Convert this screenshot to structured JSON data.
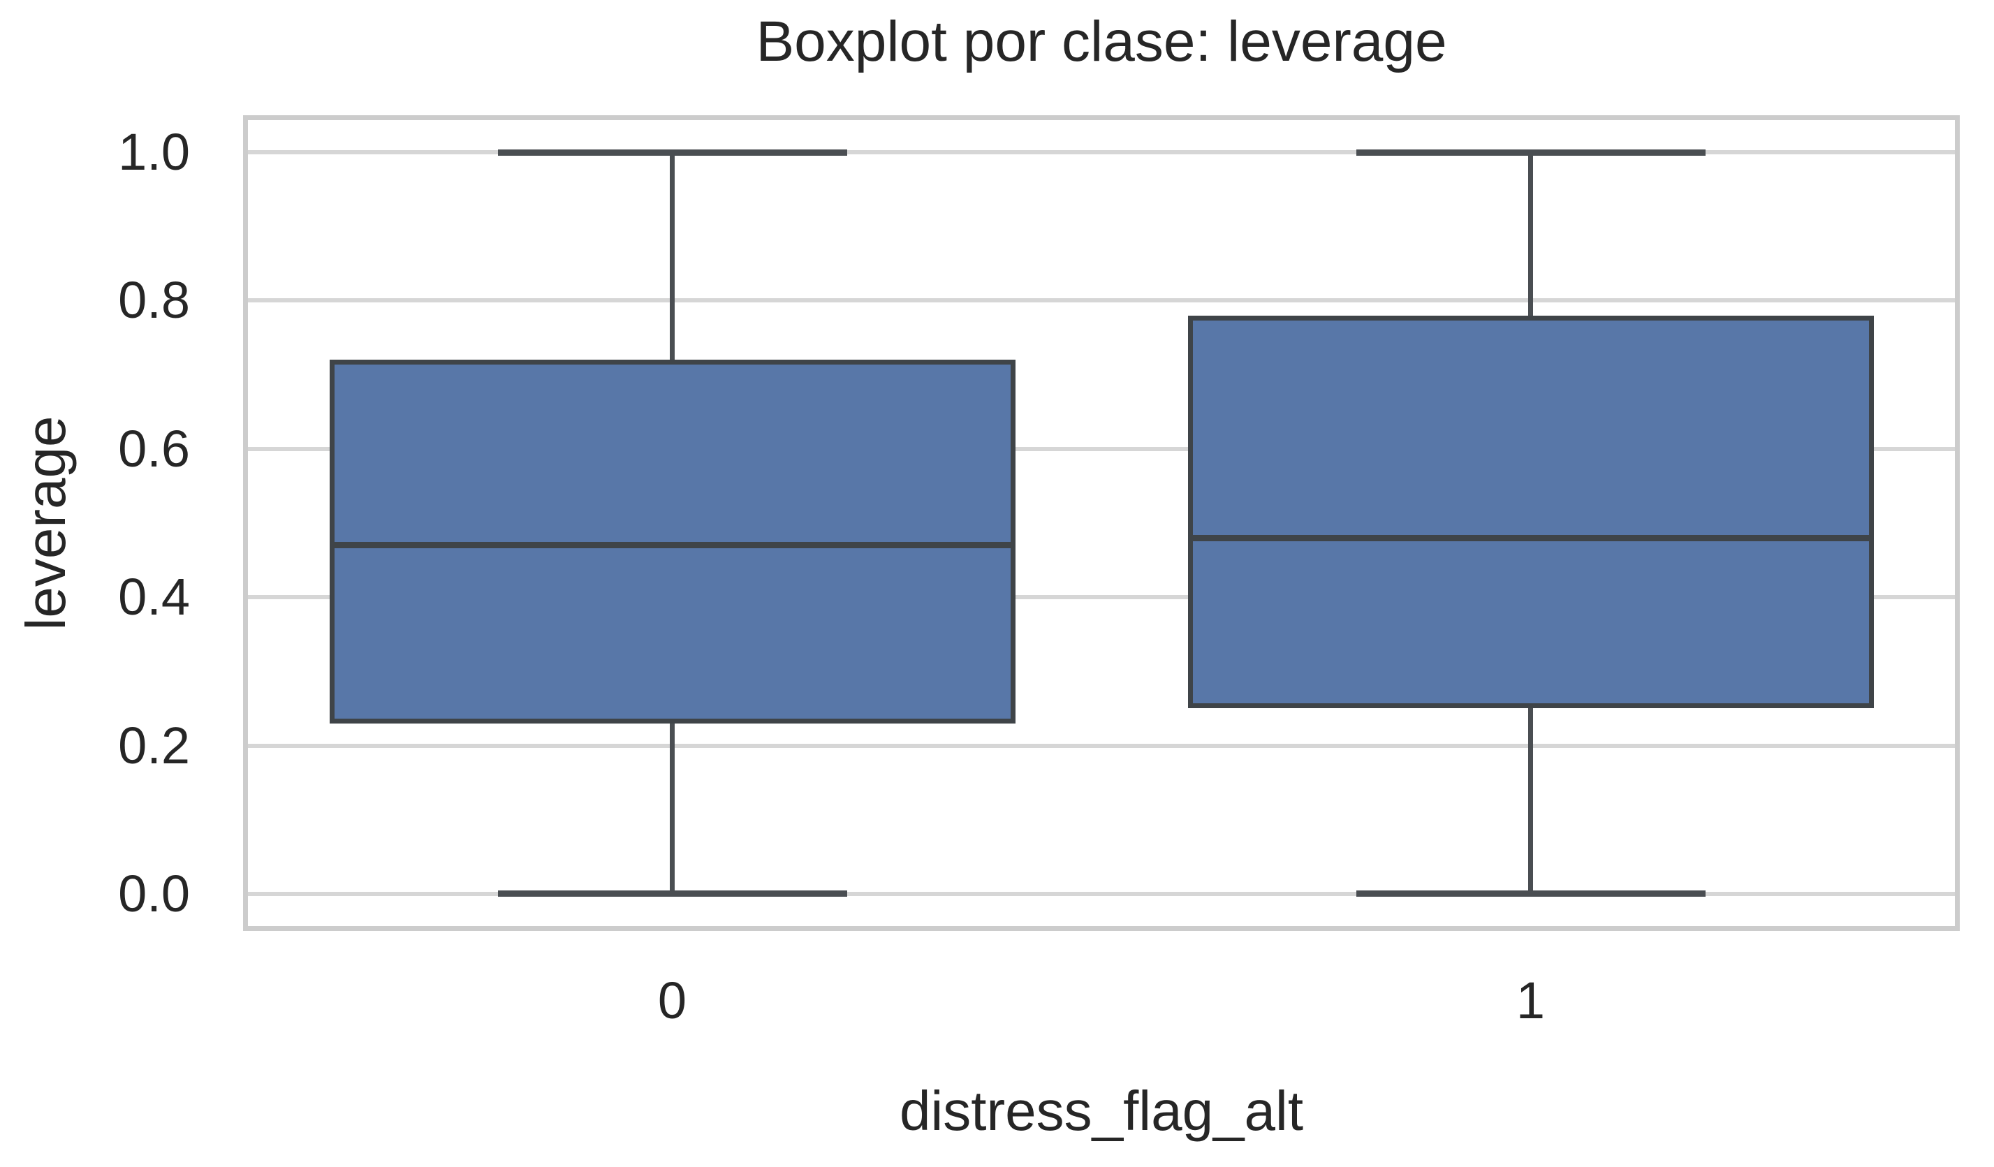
{
  "chart_data": {
    "type": "box",
    "title": "Boxplot por clase: leverage",
    "xlabel": "distress_flag_alt",
    "ylabel": "leverage",
    "categories": [
      "0",
      "1"
    ],
    "series": [
      {
        "category": "0",
        "whisker_low": 0.0,
        "q1": 0.23,
        "median": 0.47,
        "q3": 0.72,
        "whisker_high": 1.0
      },
      {
        "category": "1",
        "whisker_low": 0.0,
        "q1": 0.25,
        "median": 0.48,
        "q3": 0.78,
        "whisker_high": 1.0
      }
    ],
    "ytick_labels": [
      "1.0",
      "0.8",
      "0.6",
      "0.4",
      "0.2",
      "0.0"
    ],
    "ytick_values": [
      1.0,
      0.8,
      0.6,
      0.4,
      0.2,
      0.0
    ],
    "xtick_labels": [
      "0",
      "1"
    ],
    "ylim": [
      -0.05,
      1.05
    ],
    "grid": "horizontal-only",
    "legend": "none",
    "colors": {
      "box_fill": "#5877A8",
      "box_edge": "#3F4448",
      "median": "#3F4448",
      "whisker": "#4A4E52",
      "gridline": "#D6D6D6",
      "spine": "#CCCCCC",
      "text": "#262626",
      "background": "#FFFFFF"
    }
  }
}
